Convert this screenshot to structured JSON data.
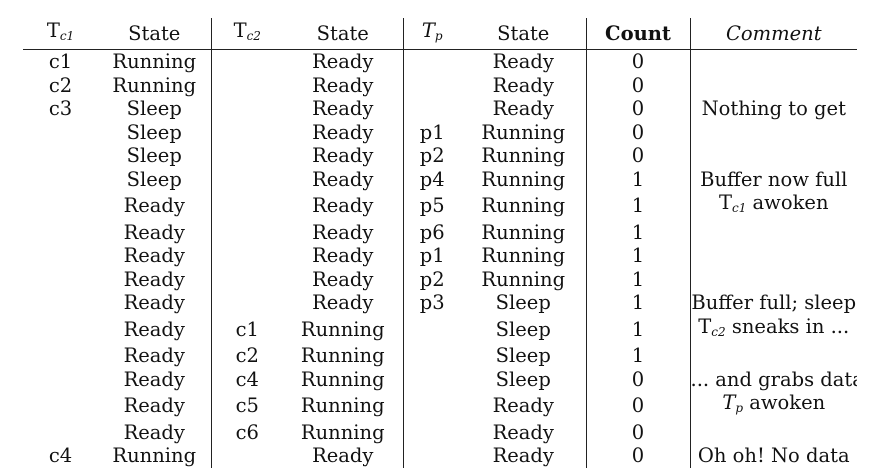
{
  "headers": {
    "tc1_main": "T",
    "tc1_sub": "c1",
    "state1": "State",
    "tc2_main": "T",
    "tc2_sub": "c2",
    "state2": "State",
    "tp_main": "T",
    "tp_sub": "p",
    "state3": "State",
    "count": "Count",
    "comment": "Comment"
  },
  "rows": [
    {
      "tc1": "c1",
      "s1": "Running",
      "tc2": "",
      "s2": "Ready",
      "tp": "",
      "s3": "Ready",
      "count": "0",
      "comment": ""
    },
    {
      "tc1": "c2",
      "s1": "Running",
      "tc2": "",
      "s2": "Ready",
      "tp": "",
      "s3": "Ready",
      "count": "0",
      "comment": ""
    },
    {
      "tc1": "c3",
      "s1": "Sleep",
      "tc2": "",
      "s2": "Ready",
      "tp": "",
      "s3": "Ready",
      "count": "0",
      "comment": "Nothing to get"
    },
    {
      "tc1": "",
      "s1": "Sleep",
      "tc2": "",
      "s2": "Ready",
      "tp": "p1",
      "s3": "Running",
      "count": "0",
      "comment": ""
    },
    {
      "tc1": "",
      "s1": "Sleep",
      "tc2": "",
      "s2": "Ready",
      "tp": "p2",
      "s3": "Running",
      "count": "0",
      "comment": ""
    },
    {
      "tc1": "",
      "s1": "Sleep",
      "tc2": "",
      "s2": "Ready",
      "tp": "p4",
      "s3": "Running",
      "count": "1",
      "comment": "Buffer now full"
    },
    {
      "tc1": "",
      "s1": "Ready",
      "tc2": "",
      "s2": "Ready",
      "tp": "p5",
      "s3": "Running",
      "count": "1",
      "comment": "Tc1 awoken",
      "comment_main": "T",
      "comment_sub": "c1",
      "comment_rest": " awoken"
    },
    {
      "tc1": "",
      "s1": "Ready",
      "tc2": "",
      "s2": "Ready",
      "tp": "p6",
      "s3": "Running",
      "count": "1",
      "comment": ""
    },
    {
      "tc1": "",
      "s1": "Ready",
      "tc2": "",
      "s2": "Ready",
      "tp": "p1",
      "s3": "Running",
      "count": "1",
      "comment": ""
    },
    {
      "tc1": "",
      "s1": "Ready",
      "tc2": "",
      "s2": "Ready",
      "tp": "p2",
      "s3": "Running",
      "count": "1",
      "comment": ""
    },
    {
      "tc1": "",
      "s1": "Ready",
      "tc2": "",
      "s2": "Ready",
      "tp": "p3",
      "s3": "Sleep",
      "count": "1",
      "comment": "Buffer full; sleep"
    },
    {
      "tc1": "",
      "s1": "Ready",
      "tc2": "c1",
      "s2": "Running",
      "tp": "",
      "s3": "Sleep",
      "count": "1",
      "comment": "Tc2 sneaks in ...",
      "comment_main": "T",
      "comment_sub": "c2",
      "comment_rest": " sneaks in ..."
    },
    {
      "tc1": "",
      "s1": "Ready",
      "tc2": "c2",
      "s2": "Running",
      "tp": "",
      "s3": "Sleep",
      "count": "1",
      "comment": ""
    },
    {
      "tc1": "",
      "s1": "Ready",
      "tc2": "c4",
      "s2": "Running",
      "tp": "",
      "s3": "Sleep",
      "count": "0",
      "comment": "... and grabs data"
    },
    {
      "tc1": "",
      "s1": "Ready",
      "tc2": "c5",
      "s2": "Running",
      "tp": "",
      "s3": "Ready",
      "count": "0",
      "comment": "Tp awoken",
      "comment_main": "T",
      "comment_sub": "p",
      "comment_rest": " awoken",
      "comment_ital": true
    },
    {
      "tc1": "",
      "s1": "Ready",
      "tc2": "c6",
      "s2": "Running",
      "tp": "",
      "s3": "Ready",
      "count": "0",
      "comment": ""
    },
    {
      "tc1": "c4",
      "s1": "Running",
      "tc2": "",
      "s2": "Ready",
      "tp": "",
      "s3": "Ready",
      "count": "0",
      "comment": "Oh oh! No data"
    }
  ]
}
